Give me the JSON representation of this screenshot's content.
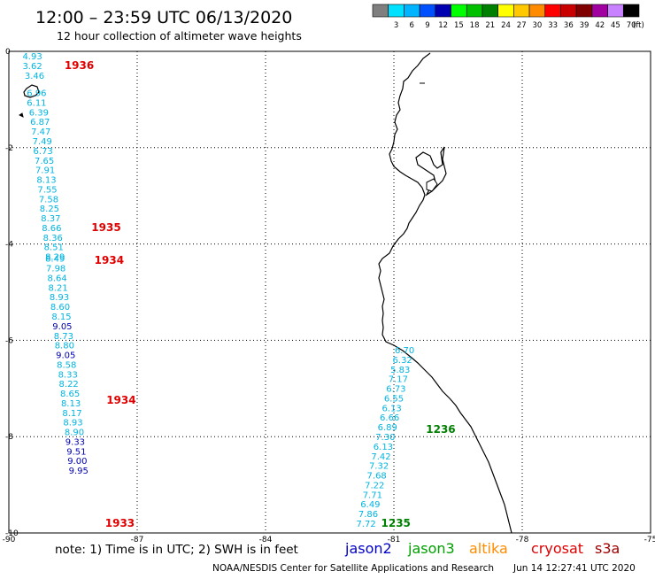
{
  "header": {
    "title": "12:00 – 23:59 UTC 06/13/2020",
    "subtitle": "12 hour collection of altimeter wave heights"
  },
  "colorbar": {
    "unit": "(ft)",
    "bins": [
      {
        "color": "#7f7f7f",
        "label": ""
      },
      {
        "color": "#00e0ff",
        "label": "3"
      },
      {
        "color": "#00b4ff",
        "label": "6"
      },
      {
        "color": "#0050ff",
        "label": "9"
      },
      {
        "color": "#0000b0",
        "label": "12"
      },
      {
        "color": "#00ff00",
        "label": "15"
      },
      {
        "color": "#00c000",
        "label": "18"
      },
      {
        "color": "#008000",
        "label": "21"
      },
      {
        "color": "#ffff00",
        "label": "24"
      },
      {
        "color": "#ffc800",
        "label": "27"
      },
      {
        "color": "#ff8c00",
        "label": "30"
      },
      {
        "color": "#ff0000",
        "label": "33"
      },
      {
        "color": "#c80000",
        "label": "36"
      },
      {
        "color": "#800000",
        "label": "39"
      },
      {
        "color": "#a000a0",
        "label": "42"
      },
      {
        "color": "#c882ff",
        "label": "45"
      },
      {
        "color": "#000000",
        "label": "70"
      }
    ]
  },
  "axes": {
    "lon_ticks": [
      "-90",
      "-87",
      "-84",
      "-81",
      "-78",
      "-75"
    ],
    "lat_ticks": [
      "0",
      "-2",
      "-4",
      "-6",
      "-8",
      "-10"
    ],
    "lon_range": [
      -90,
      -75
    ],
    "lat_range": [
      -10,
      0
    ]
  },
  "tracks": {
    "west": [
      {
        "v": "4.93",
        "lon": -89.45,
        "lat": -0.17
      },
      {
        "v": "3.62",
        "lon": -89.45,
        "lat": -0.37
      },
      {
        "v": "3.46",
        "lon": -89.4,
        "lat": -0.57
      },
      {
        "v": "6.96",
        "lon": -89.35,
        "lat": -0.93
      },
      {
        "v": "6.11",
        "lon": -89.35,
        "lat": -1.13
      },
      {
        "v": "6.39",
        "lon": -89.3,
        "lat": -1.33
      },
      {
        "v": "6.87",
        "lon": -89.27,
        "lat": -1.53
      },
      {
        "v": "7.47",
        "lon": -89.25,
        "lat": -1.73
      },
      {
        "v": "7.49",
        "lon": -89.22,
        "lat": -1.93
      },
      {
        "v": "6.73",
        "lon": -89.2,
        "lat": -2.13
      },
      {
        "v": "7.65",
        "lon": -89.17,
        "lat": -2.33
      },
      {
        "v": "7.91",
        "lon": -89.15,
        "lat": -2.53
      },
      {
        "v": "8.13",
        "lon": -89.12,
        "lat": -2.73
      },
      {
        "v": "7.55",
        "lon": -89.1,
        "lat": -2.93
      },
      {
        "v": "7.58",
        "lon": -89.07,
        "lat": -3.13
      },
      {
        "v": "8.25",
        "lon": -89.05,
        "lat": -3.33
      },
      {
        "v": "8.37",
        "lon": -89.02,
        "lat": -3.53
      },
      {
        "v": "8.66",
        "lon": -89.0,
        "lat": -3.73
      },
      {
        "v": "8.36",
        "lon": -88.97,
        "lat": -3.93
      },
      {
        "v": "8.51",
        "lon": -88.95,
        "lat": -4.13
      },
      {
        "v": "8.29",
        "lon": -88.92,
        "lat": -4.33
      },
      {
        "v": "8.49",
        "lon": -88.92,
        "lat": -4.37
      },
      {
        "v": "7.98",
        "lon": -88.9,
        "lat": -4.57
      },
      {
        "v": "8.64",
        "lon": -88.87,
        "lat": -4.77
      },
      {
        "v": "8.21",
        "lon": -88.85,
        "lat": -4.97
      },
      {
        "v": "8.93",
        "lon": -88.82,
        "lat": -5.17
      },
      {
        "v": "8.60",
        "lon": -88.8,
        "lat": -5.37
      },
      {
        "v": "8.15",
        "lon": -88.77,
        "lat": -5.57
      },
      {
        "v": "9.05",
        "lon": -88.75,
        "lat": -5.77
      },
      {
        "v": "8.73",
        "lon": -88.72,
        "lat": -5.97
      },
      {
        "v": "8.80",
        "lon": -88.7,
        "lat": -6.17
      },
      {
        "v": "9.05",
        "lon": -88.67,
        "lat": -6.37
      },
      {
        "v": "8.58",
        "lon": -88.65,
        "lat": -6.57
      },
      {
        "v": "8.33",
        "lon": -88.62,
        "lat": -6.77
      },
      {
        "v": "8.22",
        "lon": -88.6,
        "lat": -6.97
      },
      {
        "v": "8.65",
        "lon": -88.57,
        "lat": -7.17
      },
      {
        "v": "8.13",
        "lon": -88.55,
        "lat": -7.37
      },
      {
        "v": "8.17",
        "lon": -88.52,
        "lat": -7.57
      },
      {
        "v": "8.93",
        "lon": -88.5,
        "lat": -7.77
      },
      {
        "v": "8.90",
        "lon": -88.47,
        "lat": -7.97
      },
      {
        "v": "9.33",
        "lon": -88.45,
        "lat": -8.17
      },
      {
        "v": "9.51",
        "lon": -88.42,
        "lat": -8.37
      },
      {
        "v": "9.00",
        "lon": -88.4,
        "lat": -8.57
      },
      {
        "v": "9.95",
        "lon": -88.37,
        "lat": -8.77
      }
    ],
    "east": [
      {
        "v": "6.70",
        "lon": -80.75,
        "lat": -6.27
      },
      {
        "v": "6.32",
        "lon": -80.8,
        "lat": -6.47
      },
      {
        "v": "5.83",
        "lon": -80.85,
        "lat": -6.67
      },
      {
        "v": "7.17",
        "lon": -80.9,
        "lat": -6.87
      },
      {
        "v": "6.73",
        "lon": -80.95,
        "lat": -7.07
      },
      {
        "v": "6.55",
        "lon": -81.0,
        "lat": -7.27
      },
      {
        "v": "6.13",
        "lon": -81.05,
        "lat": -7.47
      },
      {
        "v": "6.66",
        "lon": -81.1,
        "lat": -7.67
      },
      {
        "v": "6.89",
        "lon": -81.15,
        "lat": -7.87
      },
      {
        "v": "7.30",
        "lon": -81.2,
        "lat": -8.07
      },
      {
        "v": "6.13",
        "lon": -81.25,
        "lat": -8.27
      },
      {
        "v": "7.42",
        "lon": -81.3,
        "lat": -8.47
      },
      {
        "v": "7.32",
        "lon": -81.35,
        "lat": -8.67
      },
      {
        "v": "7.68",
        "lon": -81.4,
        "lat": -8.87
      },
      {
        "v": "7.22",
        "lon": -81.45,
        "lat": -9.07
      },
      {
        "v": "7.71",
        "lon": -81.5,
        "lat": -9.27
      },
      {
        "v": "6.49",
        "lon": -81.55,
        "lat": -9.47
      },
      {
        "v": "7.86",
        "lon": -81.6,
        "lat": -9.67
      },
      {
        "v": "7.72",
        "lon": -81.65,
        "lat": -9.87
      }
    ]
  },
  "time_labels": [
    {
      "text": "1936",
      "lon": -88.7,
      "lat": -0.37,
      "color": "#e00000"
    },
    {
      "text": "1935",
      "lon": -88.07,
      "lat": -3.73,
      "color": "#e00000"
    },
    {
      "text": "1934",
      "lon": -88.0,
      "lat": -4.41,
      "color": "#e00000"
    },
    {
      "text": "1934",
      "lon": -87.72,
      "lat": -7.32,
      "color": "#e00000"
    },
    {
      "text": "1933",
      "lon": -87.75,
      "lat": -9.87,
      "color": "#e00000"
    },
    {
      "text": "1236",
      "lon": -80.25,
      "lat": -7.92,
      "color": "#008000"
    },
    {
      "text": "1235",
      "lon": -81.3,
      "lat": -9.87,
      "color": "#008000"
    }
  ],
  "legend": {
    "note": "note:  1) Time is in UTC;  2) SWH is in feet",
    "satellites": [
      {
        "name": "jason2",
        "color": "#0000c8"
      },
      {
        "name": "jason3",
        "color": "#00a000"
      },
      {
        "name": "altika",
        "color": "#ff8c00"
      },
      {
        "name": "cryosat",
        "color": "#e00000"
      },
      {
        "name": "s3a",
        "color": "#a00000"
      }
    ]
  },
  "footer": {
    "source": "NOAA/NESDIS Center for Satellite Applications and Research",
    "timestamp": "Jun 14 12:27:41 UTC 2020"
  }
}
